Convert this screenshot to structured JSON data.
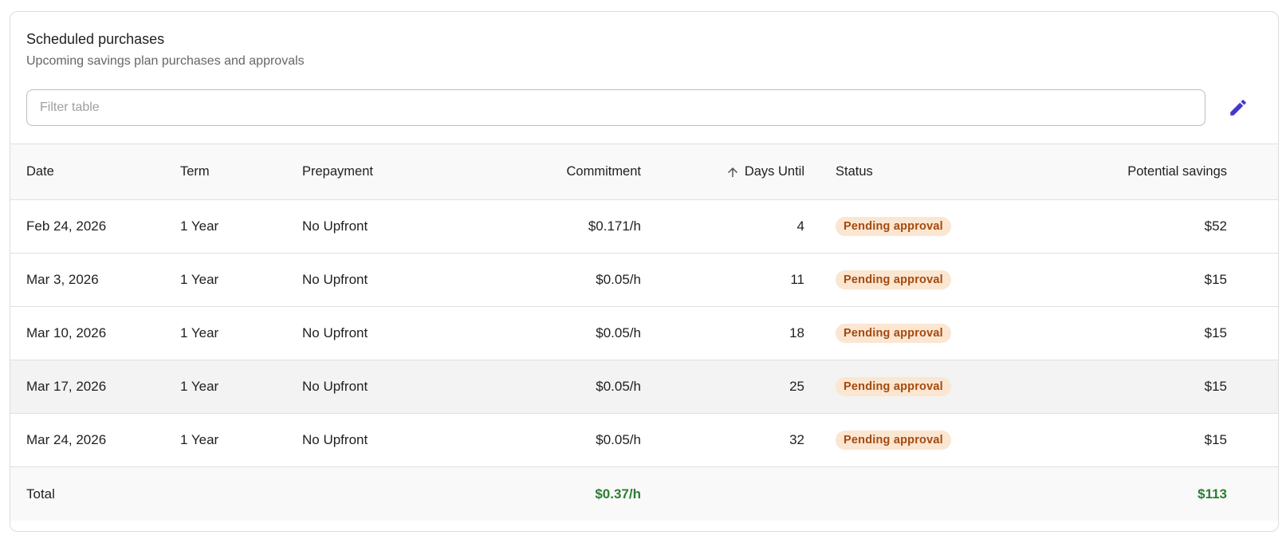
{
  "header": {
    "title": "Scheduled purchases",
    "subtitle": "Upcoming savings plan purchases and approvals"
  },
  "filter": {
    "placeholder": "Filter table",
    "value": ""
  },
  "toolbar": {
    "edit_icon": "pencil-icon",
    "accent_color": "#4338ca"
  },
  "table": {
    "columns": {
      "date": "Date",
      "term": "Term",
      "prepayment": "Prepayment",
      "commitment": "Commitment",
      "days_until": "Days Until",
      "status": "Status",
      "savings": "Potential savings"
    },
    "sort": {
      "column": "days_until",
      "direction": "ascending",
      "icon": "arrow-up-icon"
    },
    "rows": [
      {
        "date": "Feb 24, 2026",
        "term": "1 Year",
        "prepayment": "No Upfront",
        "commitment": "$0.171/h",
        "days_until": "4",
        "status": "Pending approval",
        "savings": "$52"
      },
      {
        "date": "Mar 3, 2026",
        "term": "1 Year",
        "prepayment": "No Upfront",
        "commitment": "$0.05/h",
        "days_until": "11",
        "status": "Pending approval",
        "savings": "$15"
      },
      {
        "date": "Mar 10, 2026",
        "term": "1 Year",
        "prepayment": "No Upfront",
        "commitment": "$0.05/h",
        "days_until": "18",
        "status": "Pending approval",
        "savings": "$15"
      },
      {
        "date": "Mar 17, 2026",
        "term": "1 Year",
        "prepayment": "No Upfront",
        "commitment": "$0.05/h",
        "days_until": "25",
        "status": "Pending approval",
        "savings": "$15"
      },
      {
        "date": "Mar 24, 2026",
        "term": "1 Year",
        "prepayment": "No Upfront",
        "commitment": "$0.05/h",
        "days_until": "32",
        "status": "Pending approval",
        "savings": "$15"
      }
    ],
    "footer": {
      "label": "Total",
      "commitment": "$0.37/h",
      "savings": "$113"
    },
    "colors": {
      "badge_bg": "#fbe6d2",
      "badge_text": "#a34a10",
      "total_green": "#2e7d32"
    }
  }
}
